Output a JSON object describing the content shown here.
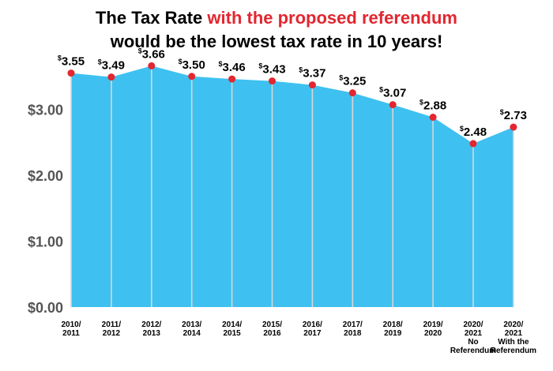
{
  "header": {
    "line1_a": "The Tax Rate ",
    "line1_b": "with the proposed referendum",
    "line2": "would be the lowest tax rate in 10 years!"
  },
  "chart_data": {
    "type": "area",
    "title": "The Tax Rate with the proposed referendum would be the lowest tax rate in 10 years!",
    "xlabel": "",
    "ylabel": "",
    "ylim": [
      0,
      4.0
    ],
    "yticks": [
      {
        "value": 0,
        "label": "$0.00"
      },
      {
        "value": 1,
        "label": "$1.00"
      },
      {
        "value": 2,
        "label": "$2.00"
      },
      {
        "value": 3,
        "label": "$3.00"
      }
    ],
    "categories": [
      [
        "2010/",
        "2011"
      ],
      [
        "2011/",
        "2012"
      ],
      [
        "2012/",
        "2013"
      ],
      [
        "2013/",
        "2014"
      ],
      [
        "2014/",
        "2015"
      ],
      [
        "2015/",
        "2016"
      ],
      [
        "2016/",
        "2017"
      ],
      [
        "2017/",
        "2018"
      ],
      [
        "2018/",
        "2019"
      ],
      [
        "2019/",
        "2020"
      ],
      [
        "2020/",
        "2021",
        "No",
        "Referendum"
      ],
      [
        "2020/",
        "2021",
        "With the",
        "Referendum"
      ]
    ],
    "values": [
      3.55,
      3.49,
      3.66,
      3.5,
      3.46,
      3.43,
      3.37,
      3.25,
      3.07,
      2.88,
      2.48,
      2.73
    ],
    "value_labels": [
      "3.55",
      "3.49",
      "3.66",
      "3.50",
      "3.46",
      "3.43",
      "3.37",
      "3.25",
      "3.07",
      "2.88",
      "2.48",
      "2.73"
    ],
    "currency_symbol": "$",
    "colors": {
      "area": "#3ec1f0",
      "point": "#e3262f",
      "gridline": "#d6d6d6",
      "title_highlight": "#e3262f"
    }
  }
}
